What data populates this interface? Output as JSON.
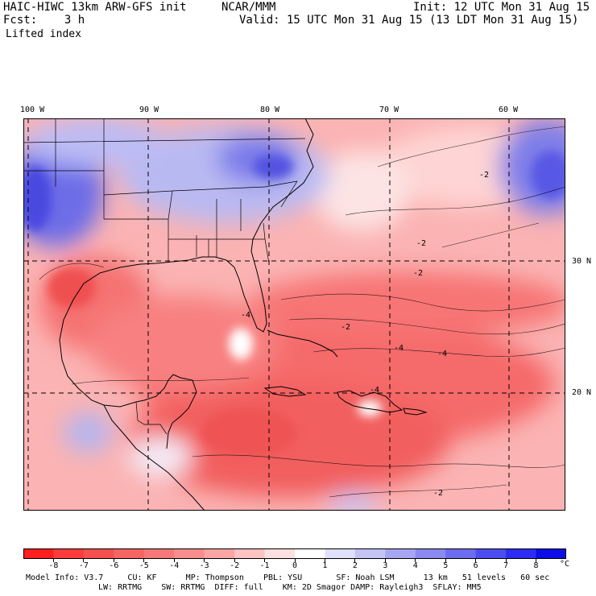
{
  "header": {
    "model": "HAIC-HIWC 13km ARW-GFS init",
    "org": "NCAR/MMM",
    "init": "Init: 12 UTC Mon 31 Aug 15",
    "fcst": "Fcst:    3 h",
    "valid": "Valid: 15 UTC Mon 31 Aug 15 (13 LDT Mon 31 Aug 15)",
    "field": "Lifted index"
  },
  "axes": {
    "lon_labels": [
      "100 W",
      "90 W",
      "80 W",
      "70 W",
      "60 W"
    ],
    "lat_labels": [
      "30 N",
      "20 N"
    ]
  },
  "contour_labels": [
    "-2",
    "-2",
    "-2",
    "-2",
    "-4",
    "-4",
    "-4",
    "-4",
    "-2"
  ],
  "colorbar": {
    "labels": [
      "-8",
      "-7",
      "-6",
      "-5",
      "-4",
      "-3",
      "-2",
      "-1",
      "0",
      "1",
      "2",
      "3",
      "4",
      "5",
      "6",
      "7",
      "8"
    ],
    "unit": "°C",
    "colors": [
      "#ff1f1f",
      "#ff3b3b",
      "#f64f4f",
      "#f76464",
      "#f77878",
      "#fa8e8e",
      "#fca5a5",
      "#fec3c3",
      "#fee0e0",
      "#ffffff",
      "#e0e0fb",
      "#c4c4f5",
      "#a6a6f2",
      "#8a8af0",
      "#6c6cf0",
      "#4c4cf0",
      "#2c2cf2",
      "#0d0de6"
    ]
  },
  "footer": {
    "line1": "Model Info: V3.7     CU: KF      MP: Thompson    PBL: YSU       SF: Noah LSM      13 km   51 levels   60 sec",
    "line2": "LW: RRTMG    SW: RRTMG  DIFF: full    KM: 2D Smagor DAMP: Rayleigh3  SFLAY: MM5"
  }
}
